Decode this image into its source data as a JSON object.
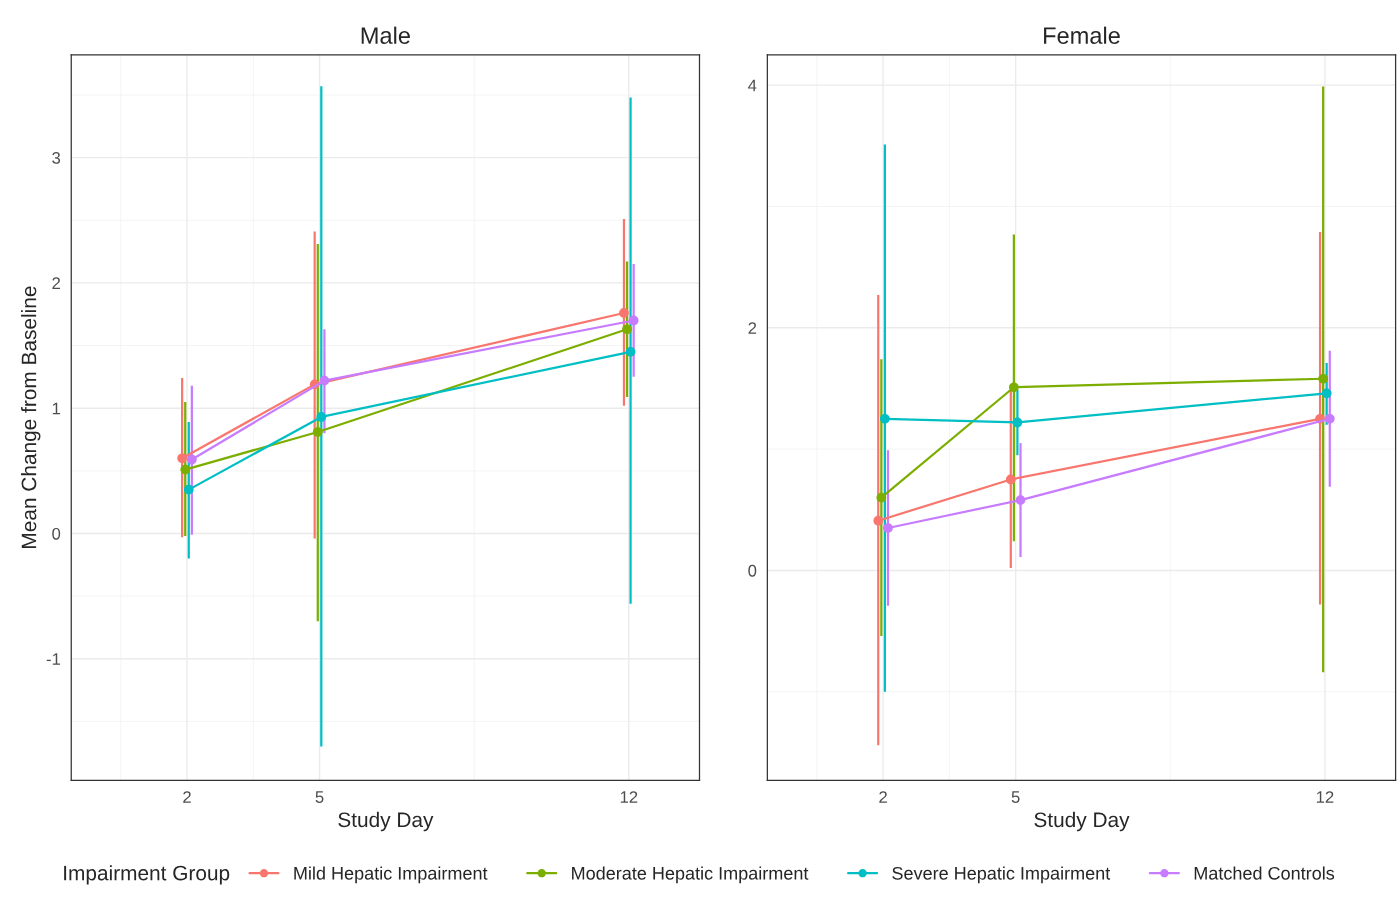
{
  "chart_data": [
    {
      "type": "line",
      "title": "Male",
      "xlabel": "Study Day",
      "ylabel": "Mean Change from Baseline",
      "legend_title": "Impairment Group",
      "legend": "bottom",
      "grid": true,
      "marker": "circle",
      "line_style": "solid",
      "xlim": [
        -0.62,
        13.6
      ],
      "ylim": [
        -1.97,
        3.82
      ],
      "xticks": [
        2,
        5,
        12
      ],
      "yticks": [
        -1,
        0,
        1,
        2,
        3
      ],
      "series": [
        {
          "name": "Mild Hepatic Impairment",
          "color": "#f8766d",
          "x": [
            1.89,
            4.89,
            11.89
          ],
          "values": [
            0.6,
            1.19,
            1.76
          ],
          "errors": [
            [
              -0.03,
              1.24
            ],
            [
              -0.04,
              2.41
            ],
            [
              1.02,
              2.51
            ]
          ]
        },
        {
          "name": "Moderate Hepatic Impairment",
          "color": "#7cae00",
          "x": [
            1.96,
            4.96,
            11.96
          ],
          "values": [
            0.51,
            0.81,
            1.63
          ],
          "errors": [
            [
              -0.02,
              1.05
            ],
            [
              -0.7,
              2.31
            ],
            [
              1.09,
              2.17
            ]
          ]
        },
        {
          "name": "Severe Hepatic Impairment",
          "color": "#00bfc4",
          "x": [
            2.04,
            5.04,
            12.04
          ],
          "values": [
            0.35,
            0.93,
            1.45
          ],
          "errors": [
            [
              -0.2,
              0.89
            ],
            [
              -1.7,
              3.57
            ],
            [
              -0.56,
              3.48
            ]
          ]
        },
        {
          "name": "Matched Controls",
          "color": "#c77cff",
          "x": [
            2.11,
            5.11,
            12.11
          ],
          "values": [
            0.59,
            1.22,
            1.7
          ],
          "errors": [
            [
              -0.01,
              1.18
            ],
            [
              0.8,
              1.63
            ],
            [
              1.25,
              2.15
            ]
          ]
        }
      ]
    },
    {
      "type": "line",
      "title": "Female",
      "xlabel": "Study Day",
      "grid": true,
      "marker": "circle",
      "line_style": "solid",
      "xlim": [
        -0.62,
        13.6
      ],
      "ylim": [
        -1.73,
        4.25
      ],
      "xticks": [
        2,
        5,
        12
      ],
      "yticks": [
        0,
        2,
        4
      ],
      "series": [
        {
          "color": "#f8766d",
          "x": [
            1.89,
            4.89,
            11.89
          ],
          "values": [
            0.41,
            0.75,
            1.25
          ],
          "errors": [
            [
              -1.44,
              2.27
            ],
            [
              0.02,
              1.49
            ],
            [
              -0.28,
              2.79
            ]
          ]
        },
        {
          "color": "#7cae00",
          "x": [
            1.96,
            4.96,
            11.96
          ],
          "values": [
            0.6,
            1.51,
            1.58
          ],
          "errors": [
            [
              -0.54,
              1.74
            ],
            [
              0.24,
              2.77
            ],
            [
              -0.84,
              3.99
            ]
          ]
        },
        {
          "color": "#00bfc4",
          "x": [
            2.04,
            5.04,
            12.04
          ],
          "values": [
            1.25,
            1.22,
            1.46
          ],
          "errors": [
            [
              -1.0,
              3.51
            ],
            [
              0.95,
              1.49
            ],
            [
              1.2,
              1.71
            ]
          ]
        },
        {
          "color": "#c77cff",
          "x": [
            2.11,
            5.11,
            12.11
          ],
          "values": [
            0.35,
            0.58,
            1.25
          ],
          "errors": [
            [
              -0.29,
              0.99
            ],
            [
              0.11,
              1.05
            ],
            [
              0.69,
              1.81
            ]
          ]
        }
      ]
    }
  ]
}
